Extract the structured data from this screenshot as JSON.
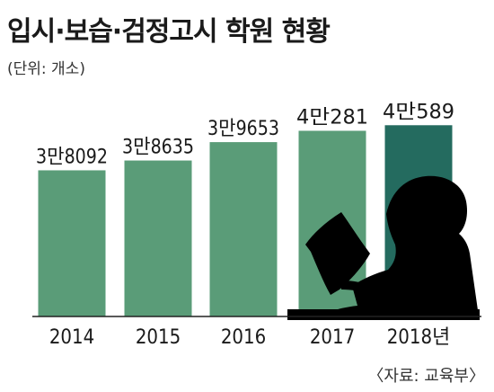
{
  "header": {
    "title": "입시·보습·검정고시 학원 현황",
    "unit": "(단위: 개소)"
  },
  "source": "〈자료: 교육부〉",
  "colors": {
    "bar": "#5a9c78",
    "highlight": "#246b5f",
    "axis": "#222222"
  },
  "chart_data": {
    "type": "bar",
    "title": "입시·보습·검정고시 학원 현황",
    "ylabel": "(단위: 개소)",
    "categories": [
      "2014",
      "2015",
      "2016",
      "2017",
      "2018년"
    ],
    "values": [
      38092,
      38635,
      39653,
      40281,
      40589
    ],
    "data_labels": [
      "3만8092",
      "3만8635",
      "3만9653",
      "4만281",
      "4만589"
    ],
    "highlight_index": 4,
    "ylim": [
      30000,
      41300
    ],
    "grid": false,
    "legend": "none"
  }
}
